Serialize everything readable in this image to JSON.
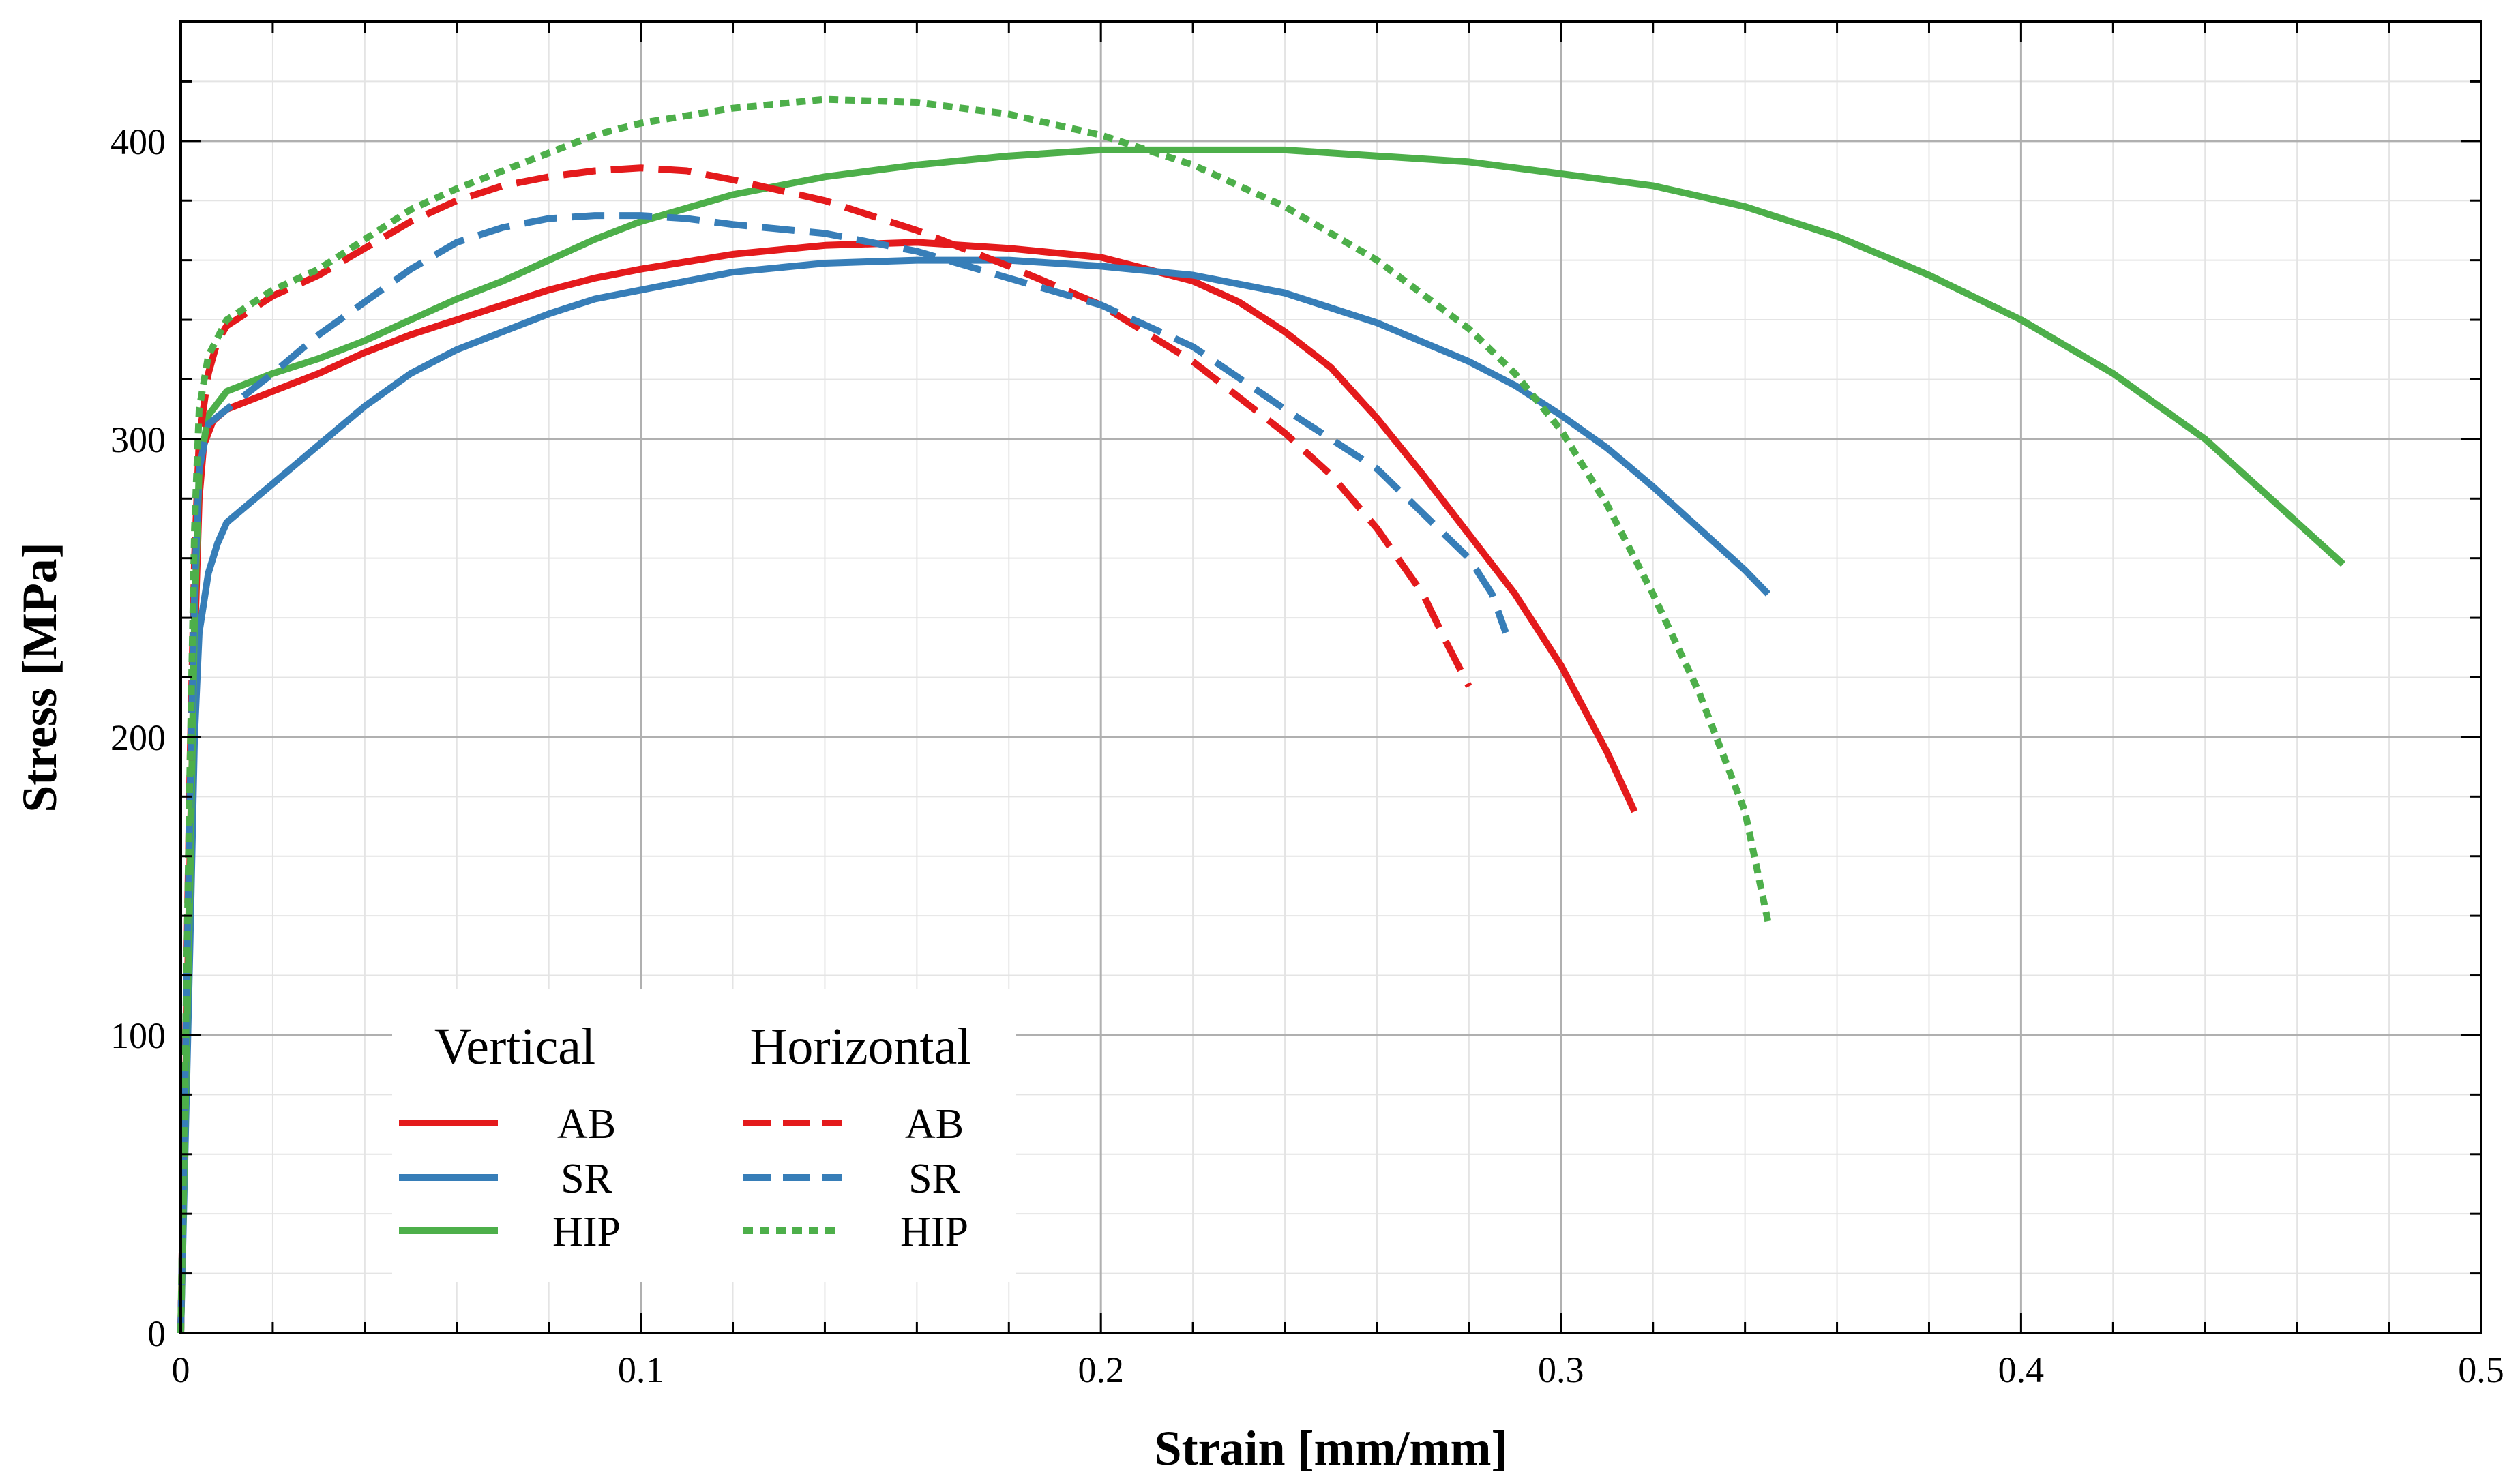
{
  "chart_data": {
    "type": "line",
    "xlabel": "Strain [mm/mm]",
    "ylabel": "Stress [MPa]",
    "xlim": [
      0,
      0.5
    ],
    "ylim": [
      0,
      440
    ],
    "xticks": [
      0,
      0.1,
      0.2,
      0.3,
      0.4,
      0.5
    ],
    "xtick_labels": [
      "0",
      "0.1",
      "0.2",
      "0.3",
      "0.4",
      "0.5"
    ],
    "yticks": [
      0,
      100,
      200,
      300,
      400
    ],
    "ytick_labels": [
      "0",
      "100",
      "200",
      "300",
      "400"
    ],
    "grid": true,
    "legend": {
      "placement": "lower-left",
      "groups": [
        {
          "title": "Vertical",
          "entries": [
            "AB",
            "SR",
            "HIP"
          ]
        },
        {
          "title": "Horizontal",
          "entries": [
            "AB",
            "SR",
            "HIP"
          ]
        }
      ]
    },
    "colors": {
      "AB": "#e41a1c",
      "SR": "#377eb8",
      "HIP": "#4daf4a"
    },
    "series": [
      {
        "group": "Vertical",
        "name": "AB",
        "color": "#e41a1c",
        "style": "solid",
        "points": [
          [
            0,
            0
          ],
          [
            0.002,
            160
          ],
          [
            0.003,
            230
          ],
          [
            0.004,
            280
          ],
          [
            0.005,
            298
          ],
          [
            0.007,
            306
          ],
          [
            0.01,
            310
          ],
          [
            0.02,
            316
          ],
          [
            0.03,
            322
          ],
          [
            0.04,
            329
          ],
          [
            0.05,
            335
          ],
          [
            0.06,
            340
          ],
          [
            0.07,
            345
          ],
          [
            0.08,
            350
          ],
          [
            0.09,
            354
          ],
          [
            0.1,
            357
          ],
          [
            0.12,
            362
          ],
          [
            0.14,
            365
          ],
          [
            0.16,
            366
          ],
          [
            0.18,
            364
          ],
          [
            0.2,
            361
          ],
          [
            0.21,
            357
          ],
          [
            0.22,
            353
          ],
          [
            0.23,
            346
          ],
          [
            0.24,
            336
          ],
          [
            0.25,
            324
          ],
          [
            0.26,
            307
          ],
          [
            0.27,
            288
          ],
          [
            0.28,
            268
          ],
          [
            0.29,
            248
          ],
          [
            0.3,
            224
          ],
          [
            0.31,
            195
          ],
          [
            0.316,
            175
          ]
        ]
      },
      {
        "group": "Vertical",
        "name": "SR",
        "color": "#377eb8",
        "style": "solid",
        "points": [
          [
            0,
            0
          ],
          [
            0.002,
            130
          ],
          [
            0.003,
            200
          ],
          [
            0.004,
            235
          ],
          [
            0.006,
            255
          ],
          [
            0.008,
            265
          ],
          [
            0.01,
            272
          ],
          [
            0.02,
            285
          ],
          [
            0.03,
            298
          ],
          [
            0.04,
            311
          ],
          [
            0.05,
            322
          ],
          [
            0.06,
            330
          ],
          [
            0.07,
            336
          ],
          [
            0.08,
            342
          ],
          [
            0.09,
            347
          ],
          [
            0.1,
            350
          ],
          [
            0.12,
            356
          ],
          [
            0.14,
            359
          ],
          [
            0.16,
            360
          ],
          [
            0.18,
            360
          ],
          [
            0.2,
            358
          ],
          [
            0.22,
            355
          ],
          [
            0.24,
            349
          ],
          [
            0.26,
            339
          ],
          [
            0.28,
            326
          ],
          [
            0.29,
            318
          ],
          [
            0.3,
            308
          ],
          [
            0.31,
            297
          ],
          [
            0.32,
            284
          ],
          [
            0.33,
            270
          ],
          [
            0.34,
            256
          ],
          [
            0.345,
            248
          ]
        ]
      },
      {
        "group": "Vertical",
        "name": "HIP",
        "color": "#4daf4a",
        "style": "solid",
        "points": [
          [
            0,
            0
          ],
          [
            0.002,
            150
          ],
          [
            0.003,
            240
          ],
          [
            0.004,
            290
          ],
          [
            0.006,
            308
          ],
          [
            0.01,
            316
          ],
          [
            0.02,
            322
          ],
          [
            0.03,
            327
          ],
          [
            0.04,
            333
          ],
          [
            0.05,
            340
          ],
          [
            0.06,
            347
          ],
          [
            0.07,
            353
          ],
          [
            0.08,
            360
          ],
          [
            0.09,
            367
          ],
          [
            0.1,
            373
          ],
          [
            0.12,
            382
          ],
          [
            0.14,
            388
          ],
          [
            0.16,
            392
          ],
          [
            0.18,
            395
          ],
          [
            0.2,
            397
          ],
          [
            0.22,
            397
          ],
          [
            0.24,
            397
          ],
          [
            0.26,
            395
          ],
          [
            0.28,
            393
          ],
          [
            0.3,
            389
          ],
          [
            0.32,
            385
          ],
          [
            0.34,
            378
          ],
          [
            0.36,
            368
          ],
          [
            0.38,
            355
          ],
          [
            0.4,
            340
          ],
          [
            0.42,
            322
          ],
          [
            0.44,
            300
          ],
          [
            0.46,
            272
          ],
          [
            0.47,
            258
          ]
        ]
      },
      {
        "group": "Horizontal",
        "name": "AB",
        "color": "#e41a1c",
        "style": "dashed",
        "points": [
          [
            0,
            0
          ],
          [
            0.002,
            190
          ],
          [
            0.003,
            260
          ],
          [
            0.004,
            300
          ],
          [
            0.006,
            322
          ],
          [
            0.008,
            333
          ],
          [
            0.01,
            338
          ],
          [
            0.02,
            348
          ],
          [
            0.03,
            355
          ],
          [
            0.04,
            364
          ],
          [
            0.05,
            373
          ],
          [
            0.06,
            380
          ],
          [
            0.07,
            385
          ],
          [
            0.08,
            388
          ],
          [
            0.09,
            390
          ],
          [
            0.1,
            391
          ],
          [
            0.11,
            390
          ],
          [
            0.12,
            387
          ],
          [
            0.14,
            380
          ],
          [
            0.16,
            370
          ],
          [
            0.18,
            358
          ],
          [
            0.2,
            345
          ],
          [
            0.22,
            326
          ],
          [
            0.24,
            302
          ],
          [
            0.25,
            288
          ],
          [
            0.26,
            270
          ],
          [
            0.27,
            248
          ],
          [
            0.275,
            232
          ],
          [
            0.28,
            217
          ]
        ]
      },
      {
        "group": "Horizontal",
        "name": "SR",
        "color": "#377eb8",
        "style": "dashed",
        "points": [
          [
            0,
            0
          ],
          [
            0.002,
            180
          ],
          [
            0.003,
            250
          ],
          [
            0.004,
            290
          ],
          [
            0.006,
            305
          ],
          [
            0.01,
            310
          ],
          [
            0.02,
            322
          ],
          [
            0.03,
            335
          ],
          [
            0.04,
            346
          ],
          [
            0.05,
            357
          ],
          [
            0.06,
            366
          ],
          [
            0.07,
            371
          ],
          [
            0.08,
            374
          ],
          [
            0.09,
            375
          ],
          [
            0.1,
            375
          ],
          [
            0.11,
            374
          ],
          [
            0.12,
            372
          ],
          [
            0.14,
            369
          ],
          [
            0.16,
            363
          ],
          [
            0.18,
            354
          ],
          [
            0.2,
            345
          ],
          [
            0.22,
            331
          ],
          [
            0.24,
            310
          ],
          [
            0.26,
            290
          ],
          [
            0.27,
            275
          ],
          [
            0.28,
            260
          ],
          [
            0.285,
            248
          ],
          [
            0.288,
            235
          ]
        ]
      },
      {
        "group": "Horizontal",
        "name": "HIP",
        "color": "#4daf4a",
        "style": "dotted",
        "points": [
          [
            0,
            0
          ],
          [
            0.002,
            190
          ],
          [
            0.003,
            270
          ],
          [
            0.004,
            310
          ],
          [
            0.006,
            328
          ],
          [
            0.01,
            340
          ],
          [
            0.02,
            350
          ],
          [
            0.03,
            357
          ],
          [
            0.04,
            367
          ],
          [
            0.05,
            377
          ],
          [
            0.06,
            384
          ],
          [
            0.07,
            390
          ],
          [
            0.08,
            396
          ],
          [
            0.09,
            402
          ],
          [
            0.1,
            406
          ],
          [
            0.12,
            411
          ],
          [
            0.14,
            414
          ],
          [
            0.16,
            413
          ],
          [
            0.18,
            409
          ],
          [
            0.2,
            402
          ],
          [
            0.22,
            392
          ],
          [
            0.24,
            378
          ],
          [
            0.26,
            360
          ],
          [
            0.28,
            337
          ],
          [
            0.29,
            322
          ],
          [
            0.3,
            303
          ],
          [
            0.31,
            278
          ],
          [
            0.32,
            248
          ],
          [
            0.33,
            215
          ],
          [
            0.34,
            175
          ],
          [
            0.345,
            138
          ]
        ]
      }
    ]
  }
}
